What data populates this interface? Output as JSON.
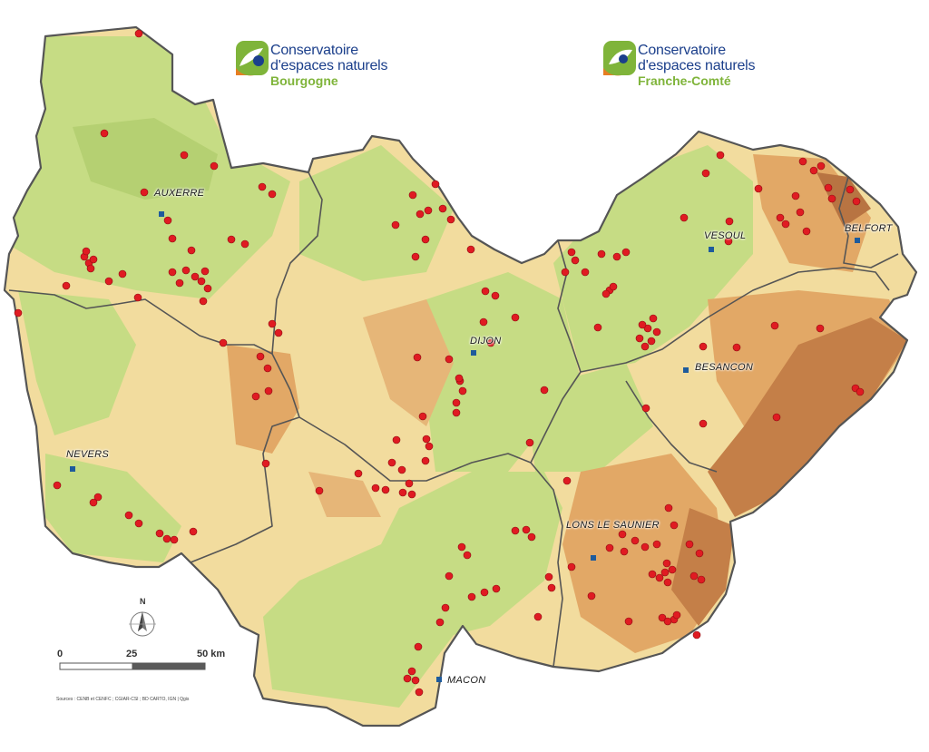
{
  "logos": {
    "left": {
      "line1": "Conservatoire",
      "line2": "d'espaces naturels",
      "line3": "Bourgogne"
    },
    "right": {
      "line1": "Conservatoire",
      "line2": "d'espaces naturels",
      "line3": "Franche-Comté"
    }
  },
  "cities": {
    "auxerre": "AUXERRE",
    "vesoul": "VESOUL",
    "belfort": "BELFORT",
    "dijon": "DIJON",
    "besancon": "BESANCON",
    "nevers": "NEVERS",
    "lons": "LONS LE SAUNIER",
    "macon": "MACON"
  },
  "compass": {
    "label": "N"
  },
  "scale": {
    "labels": [
      "0",
      "25",
      "50 km"
    ]
  },
  "sources": "Sources : CENB et CENFC ; CGIAR-CSI ; BD CARTO, IGN  |  Qgis",
  "colors": {
    "lowland": "#c6dc84",
    "plain": "#f2dc9e",
    "hills": "#e2a866",
    "mountain": "#c47f48",
    "site_marker": "#e01b22",
    "city_marker": "#1e5b9c",
    "border": "#555555"
  },
  "icons": {
    "site": "red-dot-icon",
    "city": "blue-square-icon",
    "north": "compass-icon"
  }
}
